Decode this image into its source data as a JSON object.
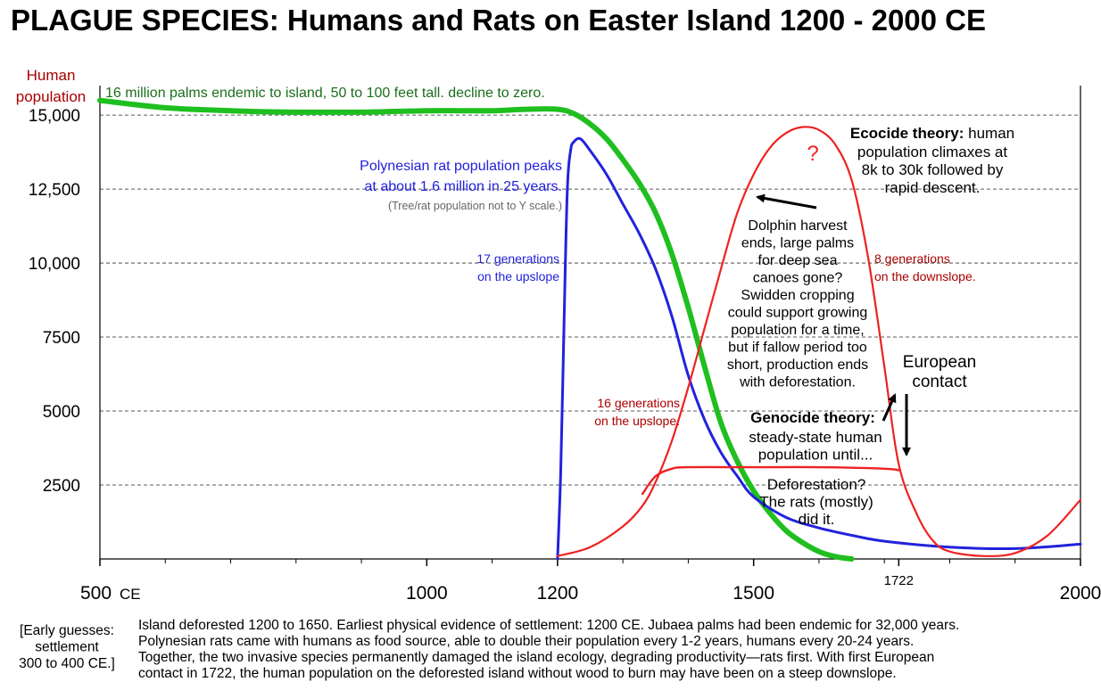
{
  "title": "PLAGUE SPECIES: Humans and Rats on Easter Island 1200 - 2000 CE",
  "caption": {
    "left_lines": [
      "[Early guesses:",
      "settlement",
      "300 to 400 CE.]"
    ],
    "main_lines": [
      "Island deforested 1200 to 1650.  Earliest physical evidence of settlement: 1200 CE.  Jubaea palms had been endemic for 32,000 years.",
      "Polynesian rats came with humans as food source, able to double their population every 1-2 years, humans every 20-24 years.",
      "Together, the two invasive species permanently damaged the island ecology, degrading productivity—rats first.  With first European",
      "contact in 1722, the human population on the deforested island without wood to burn may have been on a steep downslope."
    ]
  },
  "colors": {
    "palms": "#1fbf1f",
    "palms_text": "#1a6e1a",
    "rats": "#2222dd",
    "humans": "#ee2222",
    "dark_red": "#aa0000",
    "grid": "#888888",
    "note_gray": "#666666"
  },
  "chart_data": {
    "type": "line",
    "ylabel_lines": [
      "Human",
      "population"
    ],
    "x_unit": "CE",
    "x_ticks": [
      {
        "value": 500,
        "label": "500"
      },
      {
        "value": 1000,
        "label": "1000"
      },
      {
        "value": 1200,
        "label": "1200"
      },
      {
        "value": 1500,
        "label": "1500"
      },
      {
        "value": 1722,
        "label": "1722"
      },
      {
        "value": 2000,
        "label": "2000"
      }
    ],
    "minor_x_ticks": [
      600,
      700,
      800,
      900,
      1100,
      1300,
      1400,
      1600,
      1700,
      1800,
      1900
    ],
    "y_ticks": [
      {
        "value": 2500,
        "label": "2500"
      },
      {
        "value": 5000,
        "label": "5000"
      },
      {
        "value": 7500,
        "label": "7500"
      },
      {
        "value": 10000,
        "label": "10,000"
      },
      {
        "value": 12500,
        "label": "12,500"
      },
      {
        "value": 15000,
        "label": "15,000"
      }
    ],
    "xlim": [
      500,
      2000
    ],
    "ylim": [
      0,
      16000
    ],
    "series": [
      {
        "key": "palms",
        "x": [
          500,
          600,
          700,
          800,
          900,
          1000,
          1100,
          1150,
          1200,
          1225,
          1250,
          1275,
          1300,
          1325,
          1350,
          1375,
          1400,
          1425,
          1450,
          1475,
          1500,
          1525,
          1550,
          1575,
          1600,
          1625,
          1650
        ],
        "y": [
          15500,
          15250,
          15150,
          15100,
          15100,
          15150,
          15150,
          15200,
          15200,
          15050,
          14700,
          14200,
          13500,
          12700,
          11700,
          10300,
          8500,
          6500,
          4600,
          3300,
          2300,
          1550,
          950,
          550,
          250,
          80,
          0
        ]
      },
      {
        "key": "rats",
        "x": [
          1200,
          1205,
          1210,
          1215,
          1220,
          1225,
          1235,
          1250,
          1275,
          1300,
          1325,
          1350,
          1375,
          1400,
          1425,
          1450,
          1475,
          1500,
          1550,
          1600,
          1650,
          1700,
          1800,
          1900,
          2000
        ],
        "y": [
          0,
          3000,
          8000,
          12500,
          13800,
          14100,
          14200,
          13800,
          13000,
          12000,
          11000,
          9800,
          8200,
          6200,
          4700,
          3600,
          2800,
          2100,
          1400,
          1050,
          800,
          600,
          400,
          350,
          500
        ]
      },
      {
        "key": "humans_ecocide",
        "x": [
          1200,
          1250,
          1300,
          1330,
          1350,
          1375,
          1400,
          1425,
          1450,
          1475,
          1500,
          1525,
          1550,
          1575,
          1600,
          1625,
          1650,
          1675,
          1700,
          1722,
          1750,
          1775,
          1800,
          1850,
          1900,
          1950,
          2000
        ],
        "y": [
          100,
          400,
          1100,
          1800,
          2600,
          4000,
          5800,
          7800,
          9800,
          11700,
          13000,
          13900,
          14400,
          14600,
          14500,
          14000,
          12800,
          10200,
          6500,
          3200,
          1500,
          600,
          250,
          100,
          200,
          800,
          2000
        ]
      },
      {
        "key": "humans_genocide",
        "x": [
          1330,
          1350,
          1375,
          1400,
          1500,
          1600,
          1700,
          1722
        ],
        "y": [
          2200,
          2800,
          3050,
          3100,
          3100,
          3100,
          3050,
          3000
        ]
      }
    ],
    "annotations": {
      "palms_note": "16 million palms endemic to island, 50 to 100 feet tall. decline to zero.",
      "rat_peak_lines": [
        "Polynesian rat population  peaks",
        "at about 1.6 million in 25 years."
      ],
      "not_to_scale": "(Tree/rat population not to Y scale.)",
      "rat_generations_lines": [
        "17 generations",
        "on the upslope"
      ],
      "human_generations_lines": [
        "16 generations",
        "on the upslope."
      ],
      "downslope_lines": [
        "8 generations",
        "on the downslope."
      ],
      "question_mark": "?",
      "ecocide_bold": "Ecocide theory:",
      "ecocide_rest": " human",
      "ecocide_lines": [
        "population climaxes at",
        "8k to 30k followed by",
        "rapid descent."
      ],
      "dolphin_lines": [
        "Dolphin harvest",
        "ends, large palms",
        "for deep sea",
        "canoes gone?",
        "Swidden cropping",
        "could support growing",
        "population for a time,",
        "but if fallow period too",
        "short, production ends",
        "with deforestation."
      ],
      "european_lines": [
        "European",
        "contact"
      ],
      "genocide_bold": "Genocide theory:",
      "genocide_lines": [
        "steady-state human",
        "population until..."
      ],
      "deforest_lines": [
        "Deforestation?",
        "The rats (mostly)",
        "did it."
      ]
    }
  }
}
